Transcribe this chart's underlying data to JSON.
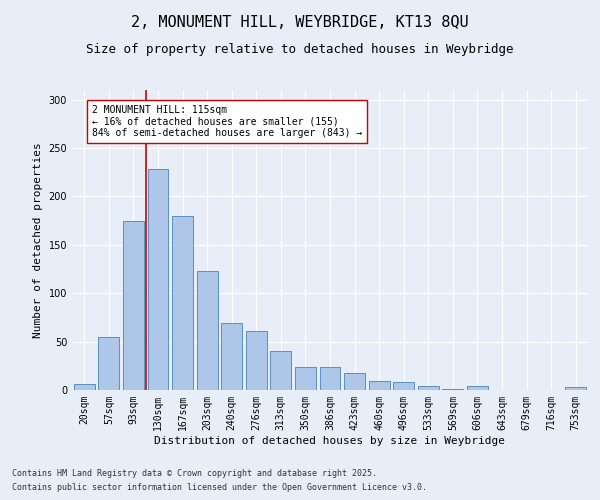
{
  "title_line1": "2, MONUMENT HILL, WEYBRIDGE, KT13 8QU",
  "title_line2": "Size of property relative to detached houses in Weybridge",
  "xlabel": "Distribution of detached houses by size in Weybridge",
  "ylabel": "Number of detached properties",
  "categories": [
    "20sqm",
    "57sqm",
    "93sqm",
    "130sqm",
    "167sqm",
    "203sqm",
    "240sqm",
    "276sqm",
    "313sqm",
    "350sqm",
    "386sqm",
    "423sqm",
    "460sqm",
    "496sqm",
    "533sqm",
    "569sqm",
    "606sqm",
    "643sqm",
    "679sqm",
    "716sqm",
    "753sqm"
  ],
  "values": [
    6,
    55,
    175,
    228,
    180,
    123,
    69,
    61,
    40,
    24,
    24,
    18,
    9,
    8,
    4,
    1,
    4,
    0,
    0,
    0,
    3
  ],
  "bar_color": "#aec6e8",
  "bar_edge_color": "#5a8fc0",
  "vline_color": "#cc0000",
  "annotation_text": "2 MONUMENT HILL: 115sqm\n← 16% of detached houses are smaller (155)\n84% of semi-detached houses are larger (843) →",
  "annotation_box_color": "#ffffff",
  "annotation_box_edge": "#cc0000",
  "ylim": [
    0,
    310
  ],
  "yticks": [
    0,
    50,
    100,
    150,
    200,
    250,
    300
  ],
  "bg_color": "#e8eef8",
  "footer_line1": "Contains HM Land Registry data © Crown copyright and database right 2025.",
  "footer_line2": "Contains public sector information licensed under the Open Government Licence v3.0.",
  "title_fontsize": 11,
  "subtitle_fontsize": 9,
  "axis_label_fontsize": 8,
  "tick_fontsize": 7,
  "annotation_fontsize": 7,
  "footer_fontsize": 6
}
